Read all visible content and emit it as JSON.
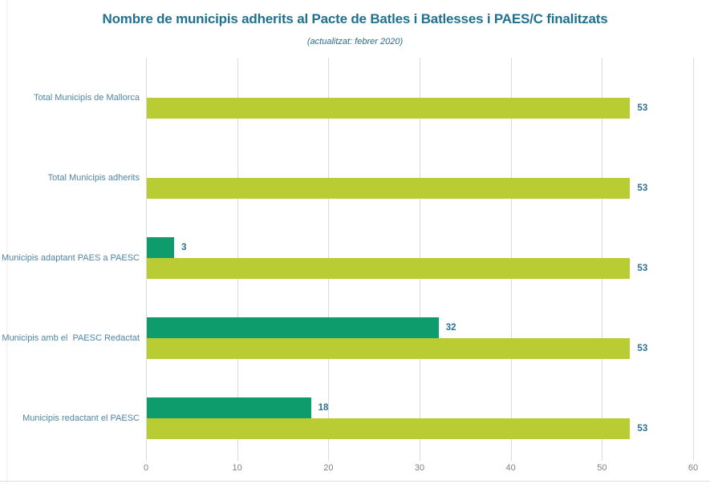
{
  "chart_data": {
    "type": "bar",
    "orientation": "horizontal",
    "title": "Nombre de municipis adherits al Pacte de Batles i Batlesses i PAES/C finalitzats",
    "subtitle": "(actualitzat: febrer 2020)",
    "categories": [
      "Total Municipis de Mallorca",
      "Total Municipis adherits",
      "Municipis adaptant PAES a PAESC",
      "Municipis amb el  PAESC Redactat",
      "Municipis redactant el PAESC"
    ],
    "series": [
      {
        "name": "teal",
        "color": "#0F9C6C",
        "values": [
          null,
          null,
          3,
          32,
          18
        ]
      },
      {
        "name": "green",
        "color": "#BACC34",
        "values": [
          53,
          53,
          53,
          53,
          53
        ]
      }
    ],
    "xlim": [
      0,
      60
    ],
    "xticks": [
      0,
      10,
      20,
      30,
      40,
      50,
      60
    ],
    "grid": "vertical",
    "legend": "none",
    "value_labels": true
  },
  "colors": {
    "title": "#20718F",
    "subtitle": "#20718F",
    "category_label": "#4E86A3",
    "value_label": "#2A7294",
    "axis_tick": "#808080",
    "gridline": "#D9D9D9",
    "bar_teal": "#0F9C6C",
    "bar_green": "#BACC34"
  }
}
